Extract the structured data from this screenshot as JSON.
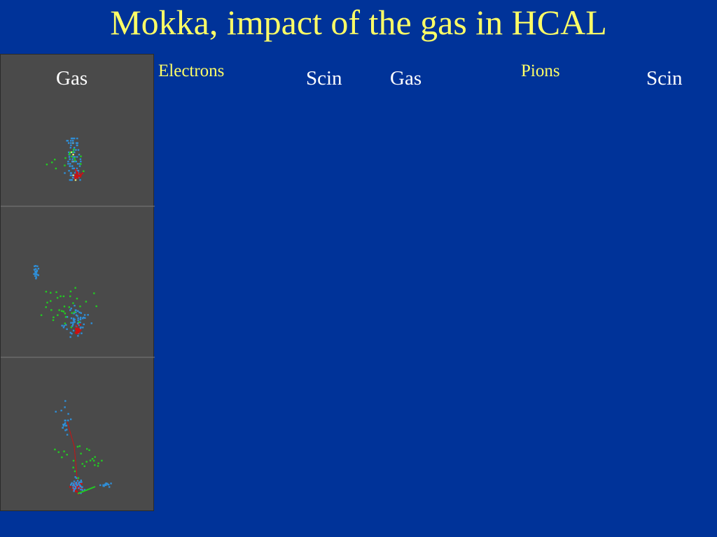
{
  "slide": {
    "title": "Mokka, impact of the gas in HCAL",
    "groups": {
      "electrons": "Electrons",
      "pions": "Pions"
    },
    "panel_labels": {
      "gas": "Gas",
      "scin": "Scin"
    },
    "colors": {
      "background": "#003399",
      "title": "#ffff66",
      "panel": "#4a4a4a",
      "hit_blue": "#2f8fd8",
      "hit_yellow": "#f0f080",
      "hit_green": "#22cc22",
      "track_red": "#cc1111"
    }
  }
}
